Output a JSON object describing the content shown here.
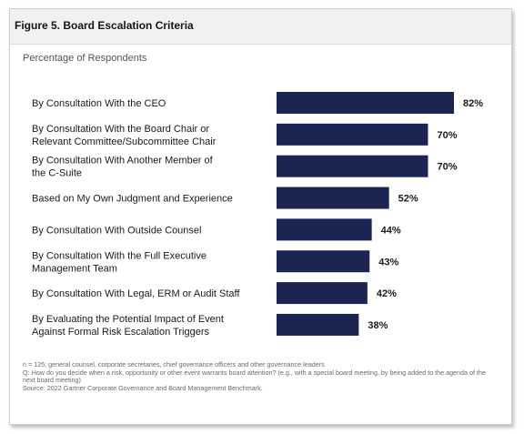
{
  "figure_title": "Figure 5. Board Escalation Criteria",
  "colors": {
    "bar": "#1c2452",
    "header_bg": "#f1f1f1"
  },
  "chart_data": {
    "type": "bar",
    "orientation": "horizontal",
    "subtitle": "Percentage of Respondents",
    "categories": [
      [
        "By Consultation With the CEO"
      ],
      [
        "By Consultation With the Board Chair or",
        "Relevant Committee/Subcommittee Chair"
      ],
      [
        "By Consultation With Another Member of",
        "the C-Suite"
      ],
      [
        "Based on My Own Judgment and Experience"
      ],
      [
        "By Consultation With Outside Counsel"
      ],
      [
        "By Consultation With the Full Executive",
        "Management Team"
      ],
      [
        "By Consultation With Legal, ERM or Audit Staff"
      ],
      [
        "By Evaluating the Potential Impact of Event",
        "Against Formal Risk Escalation Triggers"
      ]
    ],
    "values": [
      82,
      70,
      70,
      52,
      44,
      43,
      42,
      38
    ],
    "value_labels": [
      "82%",
      "70%",
      "70%",
      "52%",
      "44%",
      "43%",
      "42%",
      "38%"
    ],
    "xlim": [
      0,
      82
    ],
    "grid": false
  },
  "notes": [
    "n = 125; general counsel, corporate secretaries, chief governance officers and other governance leaders",
    "Q: How do you decide when a risk, opportunity or other event warrants board attention? (e.g., with a special board meeting, by being added to the agenda of the next board meeting)",
    "Source: 2022 Gartner Corporate Governance and Board Management Benchmark."
  ]
}
